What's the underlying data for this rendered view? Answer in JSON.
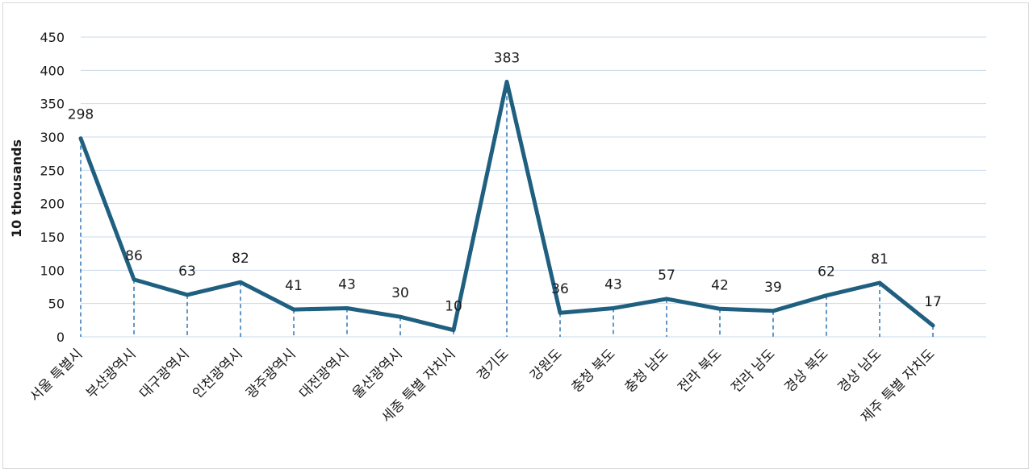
{
  "chart_data": {
    "type": "line",
    "title": "",
    "xlabel": "",
    "ylabel": "10 thousands",
    "ylim": [
      0,
      450
    ],
    "yticks": [
      0,
      50,
      100,
      150,
      200,
      250,
      300,
      350,
      400,
      450
    ],
    "grid": true,
    "drop_lines": true,
    "categories": [
      "서울 특별시",
      "부산광역시",
      "대구광역시",
      "인천광역시",
      "광주광역시",
      "대전광역시",
      "울산광역시",
      "세종 특별 자치시",
      "경기도",
      "강원도",
      "충청 북도",
      "충청 남도",
      "전라 북도",
      "전라 남도",
      "경상 북도",
      "경상 남도",
      "제주 특별 자치도"
    ],
    "series": [
      {
        "values": [
          298,
          86,
          63,
          82,
          41,
          43,
          30,
          10,
          383,
          36,
          43,
          57,
          42,
          39,
          62,
          81,
          17
        ]
      }
    ],
    "colors": {
      "line": "#1f5f80",
      "drop_line": "#2e75b6",
      "grid": "#c9d9ea"
    }
  }
}
